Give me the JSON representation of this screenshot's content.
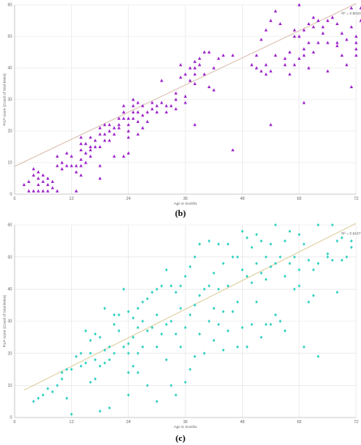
{
  "captions": {
    "b": "(b)",
    "c": "(c)"
  },
  "chart_data": [
    {
      "type": "scatter",
      "panel": "b",
      "xlabel": "Age in months",
      "ylabel": "FILP score (Count of total items)",
      "xlim": [
        0,
        72
      ],
      "ylim": [
        0,
        60
      ],
      "xticks": [
        0,
        12,
        24,
        36,
        48,
        60,
        72
      ],
      "yticks": [
        0,
        10,
        20,
        30,
        40,
        50,
        60
      ],
      "grid": true,
      "marker": "triangle",
      "color": "#9b1fc9",
      "trendline": {
        "x": [
          0,
          72
        ],
        "y": [
          8.8,
          60.4
        ],
        "color": "#d8b8a8"
      },
      "r2_label": "R² = 0.8033",
      "points": [
        [
          2,
          3
        ],
        [
          3,
          1
        ],
        [
          3,
          4
        ],
        [
          4,
          1
        ],
        [
          4,
          6
        ],
        [
          4,
          8
        ],
        [
          5,
          1
        ],
        [
          5,
          3
        ],
        [
          5,
          5
        ],
        [
          5,
          7
        ],
        [
          6,
          1
        ],
        [
          6,
          4
        ],
        [
          6,
          6
        ],
        [
          7,
          1
        ],
        [
          7,
          3
        ],
        [
          7,
          5
        ],
        [
          8,
          2
        ],
        [
          8,
          4
        ],
        [
          9,
          1
        ],
        [
          9,
          9
        ],
        [
          9,
          12
        ],
        [
          10,
          8
        ],
        [
          10,
          10
        ],
        [
          11,
          9
        ],
        [
          11,
          13
        ],
        [
          12,
          9
        ],
        [
          12,
          12
        ],
        [
          13,
          1
        ],
        [
          13,
          7
        ],
        [
          13,
          9
        ],
        [
          14,
          6
        ],
        [
          14,
          9
        ],
        [
          14,
          11
        ],
        [
          14,
          14
        ],
        [
          14,
          16
        ],
        [
          14,
          18
        ],
        [
          15,
          10
        ],
        [
          15,
          13
        ],
        [
          15,
          16
        ],
        [
          16,
          12
        ],
        [
          16,
          14
        ],
        [
          16,
          15
        ],
        [
          16,
          18
        ],
        [
          17,
          15
        ],
        [
          17,
          17
        ],
        [
          18,
          5
        ],
        [
          18,
          9
        ],
        [
          18,
          15
        ],
        [
          18,
          19
        ],
        [
          18,
          21
        ],
        [
          19,
          17
        ],
        [
          19,
          19
        ],
        [
          19,
          22
        ],
        [
          20,
          17
        ],
        [
          20,
          20
        ],
        [
          20,
          22
        ],
        [
          21,
          12
        ],
        [
          21,
          19
        ],
        [
          21,
          21
        ],
        [
          22,
          21
        ],
        [
          22,
          22
        ],
        [
          22,
          24
        ],
        [
          23,
          12
        ],
        [
          23,
          24
        ],
        [
          23,
          26
        ],
        [
          23,
          28
        ],
        [
          24,
          13
        ],
        [
          24,
          18
        ],
        [
          24,
          20
        ],
        [
          24,
          22
        ],
        [
          24,
          24
        ],
        [
          25,
          24
        ],
        [
          25,
          26
        ],
        [
          25,
          28
        ],
        [
          25,
          30
        ],
        [
          26,
          19
        ],
        [
          26,
          23
        ],
        [
          26,
          26
        ],
        [
          26,
          29
        ],
        [
          27,
          21
        ],
        [
          27,
          25
        ],
        [
          27,
          28
        ],
        [
          28,
          23
        ],
        [
          28,
          26
        ],
        [
          29,
          27
        ],
        [
          29,
          29
        ],
        [
          30,
          26
        ],
        [
          30,
          28
        ],
        [
          31,
          29
        ],
        [
          31,
          36
        ],
        [
          32,
          26
        ],
        [
          32,
          28
        ],
        [
          33,
          28
        ],
        [
          34,
          27
        ],
        [
          34,
          30
        ],
        [
          34,
          32
        ],
        [
          35,
          37
        ],
        [
          35,
          41
        ],
        [
          36,
          29
        ],
        [
          36,
          31
        ],
        [
          36,
          38
        ],
        [
          37,
          36
        ],
        [
          37,
          40
        ],
        [
          38,
          22
        ],
        [
          38,
          35
        ],
        [
          38,
          38
        ],
        [
          38,
          40
        ],
        [
          38,
          42
        ],
        [
          39,
          41
        ],
        [
          39,
          43
        ],
        [
          40,
          38
        ],
        [
          40,
          45
        ],
        [
          41,
          34
        ],
        [
          41,
          45
        ],
        [
          42,
          33
        ],
        [
          42,
          40
        ],
        [
          43,
          43
        ],
        [
          44,
          44
        ],
        [
          46,
          14
        ],
        [
          46,
          44
        ],
        [
          50,
          41
        ],
        [
          51,
          40
        ],
        [
          51,
          44
        ],
        [
          52,
          39
        ],
        [
          52,
          49
        ],
        [
          53,
          38
        ],
        [
          53,
          41
        ],
        [
          53,
          52
        ],
        [
          54,
          22
        ],
        [
          54,
          39
        ],
        [
          54,
          55
        ],
        [
          55,
          44
        ],
        [
          55,
          58
        ],
        [
          56,
          54
        ],
        [
          57,
          41
        ],
        [
          57,
          43
        ],
        [
          58,
          38
        ],
        [
          58,
          45
        ],
        [
          59,
          41
        ],
        [
          59,
          50
        ],
        [
          59,
          52
        ],
        [
          60,
          43
        ],
        [
          60,
          50
        ],
        [
          60,
          60
        ],
        [
          61,
          29
        ],
        [
          61,
          44
        ],
        [
          61,
          46
        ],
        [
          61,
          52
        ],
        [
          62,
          40
        ],
        [
          62,
          48
        ],
        [
          62,
          54
        ],
        [
          63,
          45
        ],
        [
          63,
          53
        ],
        [
          63,
          56
        ],
        [
          64,
          48
        ],
        [
          64,
          55
        ],
        [
          65,
          51
        ],
        [
          65,
          53
        ],
        [
          66,
          39
        ],
        [
          66,
          48
        ],
        [
          66,
          55
        ],
        [
          67,
          56
        ],
        [
          68,
          47
        ],
        [
          68,
          48
        ],
        [
          68,
          54
        ],
        [
          69,
          44
        ],
        [
          69,
          51
        ],
        [
          70,
          41
        ],
        [
          70,
          49
        ],
        [
          71,
          34
        ],
        [
          71,
          53
        ],
        [
          71,
          59
        ],
        [
          72,
          44
        ],
        [
          72,
          46
        ],
        [
          72,
          48
        ],
        [
          72,
          50
        ],
        [
          73,
          55
        ],
        [
          73,
          59
        ]
      ]
    },
    {
      "type": "scatter",
      "panel": "c",
      "xlabel": "Age in months",
      "ylabel": "FILP score (Count of total items)",
      "xlim": [
        0,
        72
      ],
      "ylim": [
        0,
        60
      ],
      "xticks": [
        0,
        12,
        24,
        36,
        48,
        60,
        72
      ],
      "yticks": [
        0,
        10,
        20,
        30,
        40,
        50,
        60
      ],
      "grid": true,
      "marker": "diamond",
      "color": "#2fd0c0",
      "trendline": {
        "x": [
          2,
          72
        ],
        "y": [
          8.5,
          60.5
        ],
        "color": "#d8c890"
      },
      "r2_label": "R² = 0.5427",
      "points": [
        [
          4,
          5
        ],
        [
          5,
          6
        ],
        [
          6,
          7
        ],
        [
          7,
          9
        ],
        [
          8,
          8
        ],
        [
          9,
          10
        ],
        [
          10,
          12
        ],
        [
          10,
          14
        ],
        [
          11,
          6
        ],
        [
          11,
          15
        ],
        [
          12,
          1
        ],
        [
          12,
          15
        ],
        [
          13,
          19
        ],
        [
          14,
          16
        ],
        [
          14,
          20
        ],
        [
          15,
          17
        ],
        [
          15,
          27
        ],
        [
          16,
          11
        ],
        [
          16,
          20
        ],
        [
          16,
          24
        ],
        [
          17,
          12
        ],
        [
          17,
          18
        ],
        [
          17,
          26
        ],
        [
          18,
          2
        ],
        [
          18,
          16
        ],
        [
          18,
          25
        ],
        [
          19,
          17
        ],
        [
          19,
          21
        ],
        [
          19,
          34
        ],
        [
          20,
          3
        ],
        [
          20,
          18
        ],
        [
          20,
          22
        ],
        [
          21,
          20
        ],
        [
          21,
          29
        ],
        [
          21,
          32
        ],
        [
          22,
          27
        ],
        [
          22,
          32
        ],
        [
          23,
          22
        ],
        [
          23,
          40
        ],
        [
          24,
          7
        ],
        [
          24,
          14
        ],
        [
          24,
          20
        ],
        [
          24,
          23
        ],
        [
          24,
          33
        ],
        [
          25,
          16
        ],
        [
          25,
          25
        ],
        [
          25,
          31
        ],
        [
          26,
          14
        ],
        [
          26,
          20
        ],
        [
          26,
          28
        ],
        [
          26,
          34
        ],
        [
          27,
          22
        ],
        [
          27,
          30
        ],
        [
          27,
          36
        ],
        [
          28,
          10
        ],
        [
          28,
          27
        ],
        [
          28,
          37
        ],
        [
          29,
          28
        ],
        [
          29,
          39
        ],
        [
          30,
          5
        ],
        [
          30,
          22
        ],
        [
          30,
          32
        ],
        [
          30,
          40
        ],
        [
          31,
          26
        ],
        [
          31,
          41
        ],
        [
          32,
          18
        ],
        [
          32,
          29
        ],
        [
          32,
          46
        ],
        [
          33,
          10
        ],
        [
          33,
          30
        ],
        [
          33,
          41
        ],
        [
          34,
          7
        ],
        [
          34,
          26
        ],
        [
          34,
          39
        ],
        [
          35,
          22
        ],
        [
          35,
          34
        ],
        [
          35,
          41
        ],
        [
          36,
          11
        ],
        [
          36,
          28
        ],
        [
          36,
          44
        ],
        [
          37,
          15
        ],
        [
          37,
          32
        ],
        [
          37,
          47
        ],
        [
          38,
          19
        ],
        [
          38,
          35
        ],
        [
          38,
          50
        ],
        [
          39,
          26
        ],
        [
          39,
          38
        ],
        [
          39,
          54
        ],
        [
          40,
          20
        ],
        [
          40,
          40
        ],
        [
          41,
          30
        ],
        [
          41,
          41
        ],
        [
          41,
          55
        ],
        [
          42,
          24
        ],
        [
          42,
          34
        ],
        [
          42,
          45
        ],
        [
          43,
          29
        ],
        [
          43,
          40
        ],
        [
          43,
          54
        ],
        [
          44,
          21
        ],
        [
          44,
          33
        ],
        [
          44,
          48
        ],
        [
          45,
          27
        ],
        [
          45,
          41
        ],
        [
          45,
          54
        ],
        [
          46,
          33
        ],
        [
          46,
          50
        ],
        [
          47,
          22
        ],
        [
          47,
          36
        ],
        [
          47,
          50
        ],
        [
          48,
          28
        ],
        [
          48,
          46
        ],
        [
          48,
          58
        ],
        [
          49,
          22
        ],
        [
          49,
          44
        ],
        [
          49,
          56
        ],
        [
          50,
          29
        ],
        [
          50,
          42
        ],
        [
          50,
          53
        ],
        [
          51,
          36
        ],
        [
          51,
          48
        ],
        [
          51,
          57
        ],
        [
          52,
          25
        ],
        [
          52,
          45
        ],
        [
          52,
          55
        ],
        [
          53,
          29
        ],
        [
          53,
          43
        ],
        [
          53,
          50
        ],
        [
          54,
          29
        ],
        [
          54,
          47
        ],
        [
          54,
          54
        ],
        [
          55,
          32
        ],
        [
          55,
          48
        ],
        [
          55,
          60
        ],
        [
          56,
          30
        ],
        [
          56,
          50
        ],
        [
          57,
          27
        ],
        [
          57,
          44
        ],
        [
          57,
          55
        ],
        [
          58,
          48
        ],
        [
          58,
          58
        ],
        [
          59,
          40
        ],
        [
          59,
          50
        ],
        [
          60,
          41
        ],
        [
          60,
          46
        ],
        [
          60,
          57
        ],
        [
          61,
          22
        ],
        [
          61,
          54
        ],
        [
          62,
          36
        ],
        [
          62,
          49
        ],
        [
          63,
          38
        ],
        [
          63,
          46
        ],
        [
          64,
          19
        ],
        [
          64,
          48
        ],
        [
          64,
          60
        ],
        [
          66,
          50
        ],
        [
          66,
          51
        ],
        [
          67,
          49
        ],
        [
          67,
          60
        ],
        [
          68,
          39
        ],
        [
          68,
          55
        ],
        [
          69,
          49
        ],
        [
          69,
          56
        ],
        [
          70,
          50
        ],
        [
          71,
          53
        ],
        [
          71,
          55
        ]
      ]
    }
  ]
}
